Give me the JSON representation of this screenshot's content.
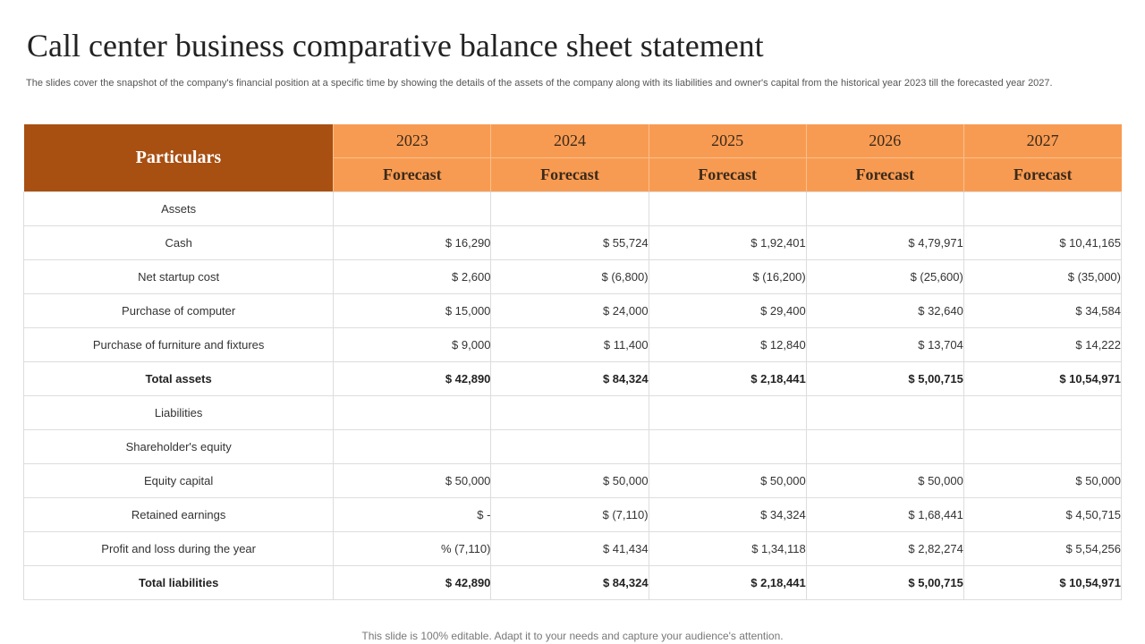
{
  "title": "Call center business comparative balance sheet statement",
  "subtitle": "The slides cover the snapshot of the company's financial position at a specific time by showing the details of the assets of the company along with its liabilities and owner's capital from the historical year 2023 till the forecasted year 2027.",
  "table": {
    "particulars_header": "Particulars",
    "years": [
      "2023",
      "2024",
      "2025",
      "2026",
      "2027"
    ],
    "forecast_labels": [
      "Forecast",
      "Forecast",
      "Forecast",
      "Forecast",
      "Forecast"
    ],
    "rows": [
      {
        "label": "Assets",
        "values": [
          "",
          "",
          "",
          "",
          ""
        ],
        "total": false
      },
      {
        "label": "Cash",
        "values": [
          "$ 16,290",
          "$ 55,724",
          "$ 1,92,401",
          "$ 4,79,971",
          "$ 10,41,165"
        ],
        "total": false
      },
      {
        "label": "Net startup cost",
        "values": [
          "$ 2,600",
          "$ (6,800)",
          "$ (16,200)",
          "$ (25,600)",
          "$ (35,000)"
        ],
        "total": false
      },
      {
        "label": "Purchase of computer",
        "values": [
          "$ 15,000",
          "$ 24,000",
          "$ 29,400",
          "$ 32,640",
          "$ 34,584"
        ],
        "total": false
      },
      {
        "label": "Purchase of furniture and fixtures",
        "values": [
          "$ 9,000",
          "$ 11,400",
          "$ 12,840",
          "$ 13,704",
          "$ 14,222"
        ],
        "total": false
      },
      {
        "label": "Total assets",
        "values": [
          "$ 42,890",
          "$ 84,324",
          "$ 2,18,441",
          "$ 5,00,715",
          "$ 10,54,971"
        ],
        "total": true
      },
      {
        "label": "Liabilities",
        "values": [
          "",
          "",
          "",
          "",
          ""
        ],
        "total": false
      },
      {
        "label": "Shareholder's equity",
        "values": [
          "",
          "",
          "",
          "",
          ""
        ],
        "total": false
      },
      {
        "label": "Equity capital",
        "values": [
          "$ 50,000",
          "$ 50,000",
          "$ 50,000",
          "$ 50,000",
          "$ 50,000"
        ],
        "total": false
      },
      {
        "label": "Retained earnings",
        "values": [
          "$ -",
          "$ (7,110)",
          "$ 34,324",
          "$ 1,68,441",
          "$ 4,50,715"
        ],
        "total": false
      },
      {
        "label": "Profit and loss during the year",
        "values": [
          "% (7,110)",
          "$ 41,434",
          "$ 1,34,118",
          "$ 2,82,274",
          "$ 5,54,256"
        ],
        "total": false
      },
      {
        "label": "Total liabilities",
        "values": [
          "$ 42,890",
          "$ 84,324",
          "$ 2,18,441",
          "$ 5,00,715",
          "$ 10,54,971"
        ],
        "total": true
      }
    ]
  },
  "footer": "This slide is 100% editable. Adapt it to your needs and capture your audience's attention.",
  "colors": {
    "particulars_bg": "#a84f12",
    "year_header_bg": "#f89b52"
  }
}
